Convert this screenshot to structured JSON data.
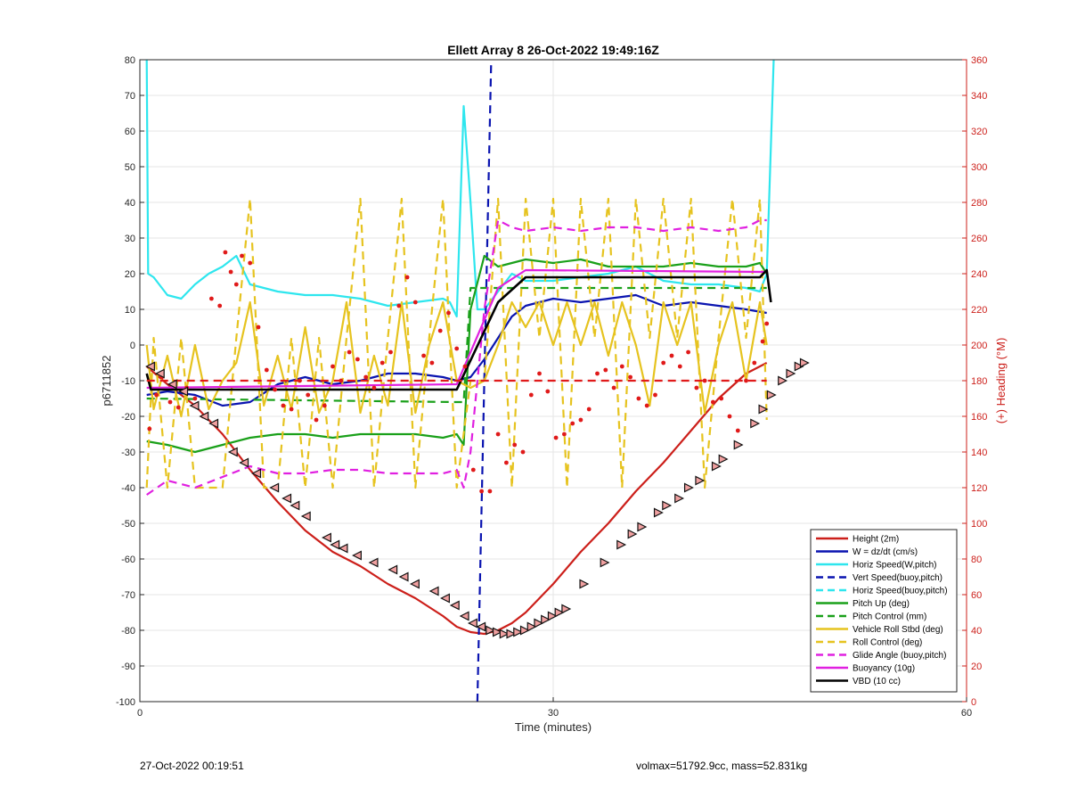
{
  "chart_data": {
    "type": "line",
    "title": "Ellett Array 8 26-Oct-2022 19:49:16Z",
    "xlabel": "Time (minutes)",
    "ylabel": "p6711852",
    "y2label": "(+) Heading (°M)",
    "xlim": [
      0,
      60
    ],
    "ylim": [
      -100,
      80
    ],
    "y2lim": [
      0,
      360
    ],
    "xticks": [
      "0",
      "30",
      "60"
    ],
    "yticks": [
      "80",
      "70",
      "60",
      "50",
      "40",
      "30",
      "20",
      "10",
      "0",
      "-10",
      "-20",
      "-30",
      "-40",
      "-50",
      "-60",
      "-70",
      "-80",
      "-90",
      "-100"
    ],
    "y2ticks": [
      "360",
      "340",
      "320",
      "300",
      "280",
      "260",
      "240",
      "220",
      "200",
      "180",
      "160",
      "140",
      "120",
      "100",
      "80",
      "60",
      "40",
      "20",
      "0"
    ],
    "grid": true,
    "legend_position": "bottom-right",
    "colors": {
      "height": "#cc1f1a",
      "w": "#0a14b0",
      "horiz_w": "#2ee6ee",
      "vert_buoy": "#0a14b0",
      "horiz_buoy": "#2ee6ee",
      "pitch_up": "#1aa01a",
      "pitch_control": "#1aa01a",
      "roll": "#e6c31f",
      "roll_control": "#e6c31f",
      "glide": "#e020e0",
      "buoyancy": "#e020e0",
      "vbd": "#000000",
      "heading": "#e01a1a",
      "right_axis": "#cc1f1a"
    },
    "series": [
      {
        "name": "Height (2m)",
        "style": "solid",
        "x": [
          0.5,
          2,
          4,
          6,
          8,
          10,
          12,
          14,
          16,
          18,
          20,
          22,
          23,
          24,
          25,
          26,
          27,
          28,
          30,
          32,
          34,
          36,
          38,
          40,
          42,
          44,
          45.5
        ],
        "y": [
          -6,
          -11,
          -17,
          -25,
          -35,
          -44,
          -52,
          -58,
          -62,
          -67,
          -71,
          -76,
          -79,
          -80.5,
          -81,
          -80,
          -78,
          -75,
          -67,
          -58,
          -50,
          -41,
          -33,
          -24,
          -15,
          -8,
          -5
        ]
      },
      {
        "name": "W = dz/dt (cm/s)",
        "style": "solid",
        "x": [
          0.5,
          2,
          4,
          6,
          8,
          10,
          12,
          14,
          16,
          18,
          20,
          22,
          23,
          24,
          25,
          27,
          28,
          30,
          32,
          34,
          36,
          38,
          40,
          42,
          44,
          45.5
        ],
        "y": [
          -14,
          -13,
          -14,
          -17,
          -16,
          -11,
          -9,
          -11,
          -10,
          -8,
          -8,
          -9,
          -10,
          -9,
          -4,
          8,
          11,
          13,
          12,
          13,
          14,
          11,
          12,
          11,
          10,
          9
        ]
      },
      {
        "name": "Horiz Speed(W,pitch)",
        "style": "solid",
        "x": [
          0.5,
          0.6,
          1,
          2,
          3,
          4,
          5,
          6,
          7,
          8,
          10,
          12,
          14,
          16,
          18,
          20,
          22,
          22.5,
          23,
          23.5,
          24,
          24.5,
          25,
          26,
          27,
          28,
          30,
          32,
          34,
          36,
          38,
          40,
          42,
          44,
          45,
          45.5,
          46
        ],
        "y": [
          80,
          20,
          19,
          14,
          13,
          17,
          20,
          22,
          25,
          17,
          15,
          14,
          14,
          13,
          11,
          12,
          13,
          12,
          8,
          67,
          40,
          10,
          10,
          15,
          20,
          18,
          18,
          19,
          20,
          22,
          18,
          17,
          17,
          16,
          15,
          20,
          80
        ]
      },
      {
        "name": "Vert Speed(buoy,pitch)",
        "style": "dashed",
        "x": [
          24.5,
          25.5
        ],
        "y": [
          -100,
          80
        ]
      },
      {
        "name": "Horiz Speed(buoy,pitch)",
        "style": "dashed",
        "x": [],
        "y": []
      },
      {
        "name": "Pitch Up (deg)",
        "style": "solid",
        "x": [
          0.5,
          2,
          4,
          6,
          8,
          10,
          12,
          14,
          16,
          18,
          20,
          22,
          23,
          23.5,
          24,
          25,
          26,
          28,
          30,
          32,
          34,
          36,
          38,
          40,
          42,
          44,
          45,
          45.5
        ],
        "y": [
          -27,
          -28,
          -30,
          -28,
          -26,
          -25,
          -25,
          -26,
          -25,
          -25,
          -25,
          -26,
          -25,
          -28,
          10,
          25,
          22,
          24,
          23,
          24,
          22,
          22,
          22,
          23,
          22,
          22,
          23,
          20
        ]
      },
      {
        "name": "Pitch Control (mm)",
        "style": "dashed",
        "x": [
          0.5,
          23,
          23.5,
          24,
          45.5
        ],
        "y": [
          -15,
          -16,
          -16,
          16,
          16
        ]
      },
      {
        "name": "Vehicle Roll Stbd (deg)",
        "style": "solid",
        "x": [
          0.5,
          1,
          2,
          3,
          4,
          5,
          6,
          7,
          8,
          9,
          10,
          11,
          12,
          13,
          14,
          15,
          16,
          17,
          18,
          19,
          20,
          21,
          22,
          23,
          24,
          25,
          26,
          27,
          28,
          29,
          30,
          31,
          32,
          33,
          34,
          35,
          36,
          37,
          38,
          39,
          40,
          41,
          42,
          43,
          44,
          45,
          45.5
        ],
        "y": [
          0,
          -18,
          -3,
          -20,
          0,
          -18,
          -10,
          -5,
          12,
          -17,
          -3,
          -18,
          5,
          -19,
          -10,
          12,
          -19,
          -3,
          -17,
          12,
          -19,
          0,
          12,
          -10,
          -12,
          -10,
          0,
          12,
          5,
          12,
          0,
          12,
          0,
          12,
          -3,
          12,
          0,
          -17,
          12,
          0,
          12,
          -19,
          0,
          12,
          -10,
          12,
          0
        ]
      },
      {
        "name": "Roll Control (deg)",
        "style": "dashed",
        "x": [
          0.5,
          1,
          2,
          3,
          4,
          5,
          6,
          7,
          8,
          9,
          10,
          11,
          12,
          13,
          14,
          15,
          16,
          17,
          18,
          19,
          20,
          21,
          22,
          23,
          24,
          25,
          26,
          27,
          28,
          29,
          30,
          31,
          32,
          33,
          34,
          35,
          36,
          37,
          38,
          39,
          40,
          41,
          42,
          43,
          44,
          45,
          45.5
        ],
        "y": [
          -40,
          2,
          -40,
          2,
          -40,
          -40,
          -40,
          2,
          41,
          -40,
          -40,
          2,
          -40,
          2,
          -40,
          2,
          41,
          -40,
          2,
          41,
          -40,
          2,
          41,
          -40,
          -10,
          -10,
          41,
          -40,
          41,
          2,
          41,
          -40,
          41,
          2,
          41,
          -40,
          41,
          2,
          41,
          2,
          41,
          -40,
          2,
          41,
          2,
          41,
          -21
        ]
      },
      {
        "name": "Glide Angle (buoy,pitch)",
        "style": "dashed",
        "x": [
          0.5,
          2,
          4,
          6,
          8,
          10,
          12,
          14,
          16,
          18,
          20,
          22,
          23,
          23.5,
          24,
          25,
          26,
          27,
          28,
          30,
          32,
          34,
          36,
          38,
          40,
          42,
          44,
          45,
          45.5
        ],
        "y": [
          -42,
          -38,
          -40,
          -37,
          -34,
          -36,
          -36,
          -35,
          -35,
          -36,
          -36,
          -36,
          -35,
          -40,
          -30,
          10,
          35,
          33,
          32,
          33,
          32,
          33,
          33,
          32,
          33,
          32,
          33,
          35,
          35
        ]
      },
      {
        "name": "Buoyancy (10g)",
        "style": "solid",
        "x": [
          0.5,
          23,
          26,
          28,
          45.5
        ],
        "y": [
          -12,
          -11,
          16,
          21,
          20.5
        ]
      },
      {
        "name": "VBD (10 cc)",
        "style": "solid",
        "x": [
          0.5,
          0.8,
          23,
          26,
          28,
          45,
          45.5,
          45.8
        ],
        "y": [
          -8,
          -12.5,
          -12.5,
          12,
          19,
          19,
          21,
          12
        ]
      },
      {
        "name": "Heading",
        "style": "dashed",
        "axis": "right",
        "x": [
          0.5,
          23,
          24.5,
          45.5
        ],
        "y": [
          180,
          180,
          180,
          180
        ]
      }
    ],
    "heading_points": [
      [
        0.7,
        153
      ],
      [
        1.2,
        172
      ],
      [
        1.6,
        182
      ],
      [
        2.2,
        168
      ],
      [
        2.8,
        165
      ],
      [
        3.4,
        176
      ],
      [
        4,
        170
      ],
      [
        4.6,
        160
      ],
      [
        5.2,
        226
      ],
      [
        5.8,
        222
      ],
      [
        6.2,
        252
      ],
      [
        6.6,
        241
      ],
      [
        7,
        234
      ],
      [
        7.4,
        250
      ],
      [
        8,
        246
      ],
      [
        8.6,
        210
      ],
      [
        9.2,
        186
      ],
      [
        9.8,
        175
      ],
      [
        10.4,
        166
      ],
      [
        11,
        164
      ],
      [
        11.6,
        180
      ],
      [
        12.2,
        172
      ],
      [
        12.8,
        158
      ],
      [
        13.4,
        166
      ],
      [
        14,
        188
      ],
      [
        14.6,
        180
      ],
      [
        15.2,
        196
      ],
      [
        15.8,
        192
      ],
      [
        16.4,
        182
      ],
      [
        17,
        176
      ],
      [
        17.6,
        190
      ],
      [
        18.2,
        196
      ],
      [
        18.8,
        222
      ],
      [
        19.4,
        238
      ],
      [
        20,
        224
      ],
      [
        20.6,
        194
      ],
      [
        21.2,
        190
      ],
      [
        21.8,
        208
      ],
      [
        22.4,
        218
      ],
      [
        23,
        198
      ],
      [
        23.6,
        188
      ],
      [
        24.2,
        130
      ],
      [
        24.8,
        118
      ],
      [
        25.4,
        118
      ],
      [
        26,
        150
      ],
      [
        26.6,
        134
      ],
      [
        27.2,
        144
      ],
      [
        27.8,
        140
      ],
      [
        28.4,
        172
      ],
      [
        29,
        184
      ],
      [
        29.6,
        174
      ],
      [
        30.2,
        148
      ],
      [
        30.8,
        150
      ],
      [
        31.4,
        156
      ],
      [
        32,
        158
      ],
      [
        32.6,
        164
      ],
      [
        33.2,
        184
      ],
      [
        33.8,
        186
      ],
      [
        34.4,
        176
      ],
      [
        35,
        188
      ],
      [
        35.6,
        182
      ],
      [
        36.2,
        170
      ],
      [
        36.8,
        166
      ],
      [
        37.4,
        172
      ],
      [
        38,
        190
      ],
      [
        38.6,
        194
      ],
      [
        39.2,
        188
      ],
      [
        39.8,
        196
      ],
      [
        40.4,
        176
      ],
      [
        41,
        180
      ],
      [
        41.6,
        168
      ],
      [
        42.2,
        170
      ],
      [
        42.8,
        160
      ],
      [
        43.4,
        152
      ],
      [
        44,
        180
      ],
      [
        44.6,
        190
      ],
      [
        45.2,
        202
      ],
      [
        45.5,
        212
      ]
    ],
    "height_markers": [
      [
        0.8,
        -6
      ],
      [
        1.5,
        -8
      ],
      [
        2.4,
        -11
      ],
      [
        3.2,
        -13
      ],
      [
        4,
        -17
      ],
      [
        4.7,
        -20
      ],
      [
        5.4,
        -22
      ],
      [
        6.8,
        -30
      ],
      [
        7.6,
        -33
      ],
      [
        8.5,
        -36
      ],
      [
        9.8,
        -40
      ],
      [
        10.7,
        -43
      ],
      [
        11.3,
        -45
      ],
      [
        12.1,
        -48
      ],
      [
        13.6,
        -54
      ],
      [
        14.2,
        -56
      ],
      [
        14.8,
        -57
      ],
      [
        15.8,
        -59
      ],
      [
        17,
        -61
      ],
      [
        18.4,
        -63
      ],
      [
        19.2,
        -65
      ],
      [
        20,
        -67
      ],
      [
        21.4,
        -69
      ],
      [
        22.2,
        -71
      ],
      [
        22.9,
        -73
      ],
      [
        23.6,
        -76
      ],
      [
        24.2,
        -78
      ],
      [
        24.8,
        -79
      ],
      [
        25.4,
        -80
      ],
      [
        25.9,
        -80.5
      ],
      [
        26.4,
        -81
      ],
      [
        26.9,
        -81
      ],
      [
        27.4,
        -80.5
      ],
      [
        27.9,
        -80
      ],
      [
        28.4,
        -79
      ],
      [
        28.9,
        -78
      ],
      [
        29.4,
        -77
      ],
      [
        29.9,
        -76
      ],
      [
        30.4,
        -75
      ],
      [
        30.9,
        -74
      ],
      [
        32.2,
        -67
      ],
      [
        33.7,
        -61
      ],
      [
        34.9,
        -56
      ],
      [
        35.7,
        -53
      ],
      [
        36.4,
        -51
      ],
      [
        37.6,
        -47
      ],
      [
        38.2,
        -45
      ],
      [
        39.1,
        -43
      ],
      [
        39.8,
        -40
      ],
      [
        40.6,
        -38
      ],
      [
        41.8,
        -34
      ],
      [
        42.3,
        -32
      ],
      [
        43.4,
        -28
      ],
      [
        44.6,
        -22
      ],
      [
        45.2,
        -18
      ],
      [
        45.8,
        -14
      ],
      [
        46.6,
        -10
      ],
      [
        47.2,
        -8
      ],
      [
        47.8,
        -6
      ],
      [
        48.2,
        -5
      ]
    ]
  },
  "footer": {
    "left_text": "27-Oct-2022 00:19:51",
    "right_text": "volmax=51792.9cc, mass=52.831kg"
  }
}
